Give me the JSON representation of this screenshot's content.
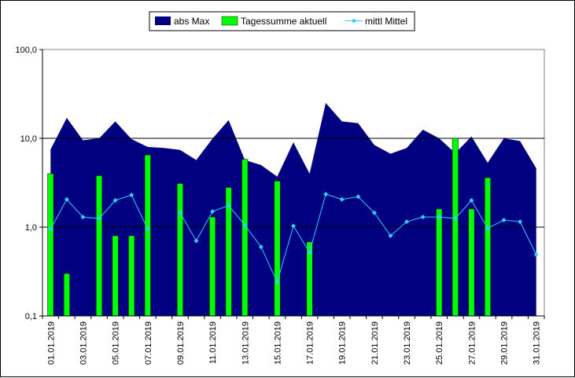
{
  "chart_data": {
    "type": "bar",
    "title": "",
    "xlabel": "",
    "ylabel": "",
    "y_scale": "log",
    "ylim": [
      0.1,
      100
    ],
    "y_ticks": [
      "0,1",
      "1,0",
      "10,0",
      "100,0"
    ],
    "y_tick_values": [
      0.1,
      1,
      10,
      100
    ],
    "horizontal_grid_at": [
      1,
      10
    ],
    "legend_placement": "top-center",
    "x_tick_labels": [
      "01.01.2019",
      "03.01.2019",
      "05.01.2019",
      "07.01.2019",
      "09.01.2019",
      "11.01.2019",
      "13.01.2019",
      "15.01.2019",
      "17.01.2019",
      "19.01.2019",
      "21.01.2019",
      "23.01.2019",
      "25.01.2019",
      "27.01.2019",
      "29.01.2019",
      "31.01.2019"
    ],
    "categories": [
      "01.01.2019",
      "02.01.2019",
      "03.01.2019",
      "04.01.2019",
      "05.01.2019",
      "06.01.2019",
      "07.01.2019",
      "08.01.2019",
      "09.01.2019",
      "10.01.2019",
      "11.01.2019",
      "12.01.2019",
      "13.01.2019",
      "14.01.2019",
      "15.01.2019",
      "16.01.2019",
      "17.01.2019",
      "18.01.2019",
      "19.01.2019",
      "20.01.2019",
      "21.01.2019",
      "22.01.2019",
      "23.01.2019",
      "24.01.2019",
      "25.01.2019",
      "26.01.2019",
      "27.01.2019",
      "28.01.2019",
      "29.01.2019",
      "30.01.2019",
      "31.01.2019"
    ],
    "series": [
      {
        "name": "abs Max",
        "kind": "area",
        "color": "#000080",
        "values": [
          7.5,
          17.0,
          9.5,
          10.0,
          15.5,
          9.8,
          8.0,
          7.8,
          7.4,
          5.7,
          9.9,
          16.0,
          5.7,
          5.0,
          3.7,
          9.0,
          4.0,
          25.0,
          15.5,
          14.8,
          8.4,
          6.7,
          7.8,
          12.5,
          10.0,
          6.8,
          10.5,
          5.3,
          10.0,
          9.3,
          4.6
        ]
      },
      {
        "name": "Tagessumme aktuell",
        "kind": "bar",
        "color": "#00ff00",
        "values": [
          4.0,
          0.3,
          null,
          3.8,
          0.8,
          0.8,
          6.5,
          null,
          3.1,
          null,
          1.3,
          2.8,
          5.8,
          null,
          3.3,
          null,
          0.68,
          null,
          null,
          null,
          null,
          null,
          null,
          null,
          1.6,
          10.0,
          1.6,
          3.6,
          null,
          null,
          null
        ]
      },
      {
        "name": "mittl Mittel",
        "kind": "line",
        "color": "#33ccff",
        "values": [
          0.95,
          2.05,
          1.3,
          1.25,
          2.0,
          2.3,
          0.95,
          null,
          1.45,
          0.7,
          1.5,
          1.75,
          1.05,
          0.6,
          0.24,
          1.03,
          0.52,
          2.35,
          2.05,
          2.2,
          1.45,
          0.8,
          1.15,
          1.3,
          1.3,
          1.25,
          2.0,
          0.97,
          1.2,
          1.15,
          0.49
        ]
      }
    ]
  }
}
